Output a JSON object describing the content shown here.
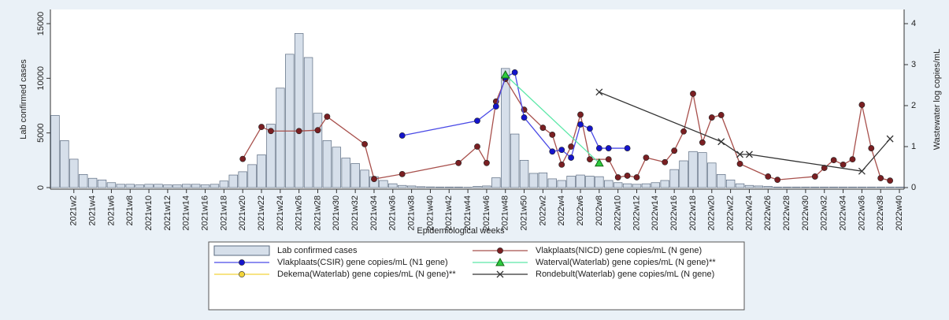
{
  "chart_data": {
    "type": "bar",
    "x_label": "Epidemiological weeks",
    "y_label": "Lab confirmed cases",
    "y2_label": "Wastewater log copies/mL",
    "ylim": [
      0,
      15000
    ],
    "yticks": [
      0,
      5000,
      10000,
      15000
    ],
    "y2lim": [
      0,
      4
    ],
    "y2ticks": [
      0,
      1,
      2,
      3,
      4
    ],
    "grid": false,
    "categories": [
      null,
      null,
      "2021w2",
      null,
      "2021w4",
      null,
      "2021w6",
      null,
      "2021w8",
      null,
      "2021w10",
      null,
      "2021w12",
      null,
      "2021w14",
      null,
      "2021w16",
      null,
      "2021w18",
      null,
      "2021w20",
      null,
      "2021w22",
      null,
      "2021w24",
      null,
      "2021w26",
      null,
      "2021w28",
      null,
      "2021w30",
      null,
      "2021w32",
      null,
      "2021w34",
      null,
      "2021w36",
      null,
      "2021w38",
      null,
      "2021w40",
      null,
      "2021w42",
      null,
      "2021w44",
      null,
      "2021w46",
      null,
      "2021w48",
      null,
      "2021w50",
      null,
      "2022w2",
      null,
      "2022w4",
      null,
      "2022w6",
      null,
      "2022w8",
      null,
      "2022w10",
      null,
      "2022w12",
      null,
      "2022w14",
      null,
      "2022w16",
      null,
      "2022w18",
      null,
      "2022w20",
      null,
      "2022w22",
      null,
      "2022w24",
      null,
      "2022w26",
      null,
      "2022w28",
      null,
      "2022w30",
      null,
      "2022w32",
      null,
      "2022w34",
      null,
      "2022w36",
      null,
      "2022w38",
      null,
      "2022w40"
    ],
    "series": [
      {
        "name": "Lab confirmed cases",
        "type": "bar",
        "color": "#d6dfea",
        "edge": "#5b6b80",
        "values": [
          6600,
          4300,
          2600,
          1200,
          850,
          700,
          450,
          300,
          300,
          250,
          300,
          300,
          250,
          250,
          300,
          300,
          250,
          300,
          600,
          1150,
          1450,
          2100,
          3000,
          5800,
          9100,
          12200,
          14100,
          11900,
          6800,
          4300,
          3700,
          2700,
          2200,
          1600,
          1000,
          650,
          350,
          200,
          150,
          80,
          60,
          50,
          50,
          50,
          30,
          100,
          150,
          900,
          10900,
          4900,
          2500,
          1300,
          1350,
          800,
          650,
          1050,
          1150,
          1050,
          1000,
          650,
          450,
          350,
          300,
          350,
          450,
          650,
          1650,
          2450,
          3300,
          3200,
          2250,
          1200,
          700,
          350,
          200,
          150,
          100,
          50,
          50,
          50,
          50,
          50,
          50,
          50,
          50,
          50,
          50,
          50,
          50,
          50,
          50
        ]
      },
      {
        "name": "Vlakplaats(NICD) gene copies/mL (N gene)",
        "type": "line",
        "axis": "y2",
        "color": "#a8504c",
        "marker": "circle",
        "marker_color": "#7a1f22",
        "x": [
          "2021w20",
          "2021w22",
          "2021w23",
          "2021w26",
          "2021w28",
          "2021w29",
          "2021w33",
          "2021w34",
          "2021w37",
          "2021w43",
          "2021w45",
          "2021w46",
          "2021w47",
          "2021w48",
          "2021w50",
          "2022w2",
          "2022w3",
          "2022w4",
          "2022w5",
          "2022w6",
          "2022w7",
          "2022w9",
          "2022w10",
          "2022w11",
          "2022w12",
          "2022w13",
          "2022w15",
          "2022w16",
          "2022w17",
          "2022w18",
          "2022w19",
          "2022w20",
          "2022w21",
          "2022w23",
          "2022w26",
          "2022w27",
          "2022w31",
          "2022w32",
          "2022w33",
          "2022w34",
          "2022w35",
          "2022w36",
          "2022w37",
          "2022w38",
          "2022w39"
        ],
        "values": [
          0.7,
          1.48,
          1.38,
          1.38,
          1.4,
          1.73,
          1.06,
          0.21,
          0.33,
          0.6,
          1.0,
          0.6,
          2.1,
          2.65,
          1.9,
          1.46,
          1.29,
          0.56,
          1.0,
          1.78,
          0.69,
          0.69,
          0.25,
          0.29,
          0.25,
          0.73,
          0.62,
          0.9,
          1.37,
          2.29,
          1.1,
          1.71,
          1.77,
          0.58,
          0.27,
          0.19,
          0.27,
          0.48,
          0.67,
          0.56,
          0.69,
          2.02,
          0.96,
          0.23,
          0.17
        ]
      },
      {
        "name": "Vlakplaats(CSIR) gene copies/mL (N1 gene)",
        "type": "line",
        "axis": "y2",
        "color": "#4a4ae6",
        "marker": "circle",
        "marker_color": "#1414cc",
        "x": [
          "2021w37",
          "2021w45",
          "2021w47",
          "2021w48",
          "2021w49",
          "2021w50",
          "2022w3",
          "2022w4",
          "2022w5",
          "2022w6",
          "2022w7",
          "2022w8",
          "2022w9",
          "2022w11"
        ],
        "values": [
          1.27,
          1.63,
          1.98,
          2.69,
          2.81,
          1.71,
          0.88,
          0.92,
          0.73,
          1.54,
          1.44,
          0.96,
          0.96,
          0.96
        ]
      },
      {
        "name": "Waterval(Waterlab) gene copies/mL (N gene)**",
        "type": "line",
        "axis": "y2",
        "color": "#5ce8a8",
        "marker": "triangle",
        "marker_color": "#2ecc40",
        "x": [
          "2021w48",
          "2022w8"
        ],
        "values": [
          2.75,
          0.6
        ]
      },
      {
        "name": "Dekema(Waterlab) gene copies/mL (N gene)**",
        "type": "line",
        "axis": "y2",
        "color": "#f2d43a",
        "marker": "circle",
        "marker_color": "#f2d43a",
        "x": [],
        "values": []
      },
      {
        "name": "Rondebult(Waterlab) gene copies/mL (N gene)",
        "type": "line",
        "axis": "y2",
        "color": "#333333",
        "marker": "x",
        "marker_color": "#333333",
        "x": [
          "2022w8",
          "2022w21",
          "2022w23",
          "2022w24",
          "2022w36",
          "2022w39"
        ],
        "values": [
          2.33,
          1.12,
          0.81,
          0.81,
          0.4,
          1.19
        ]
      }
    ]
  }
}
